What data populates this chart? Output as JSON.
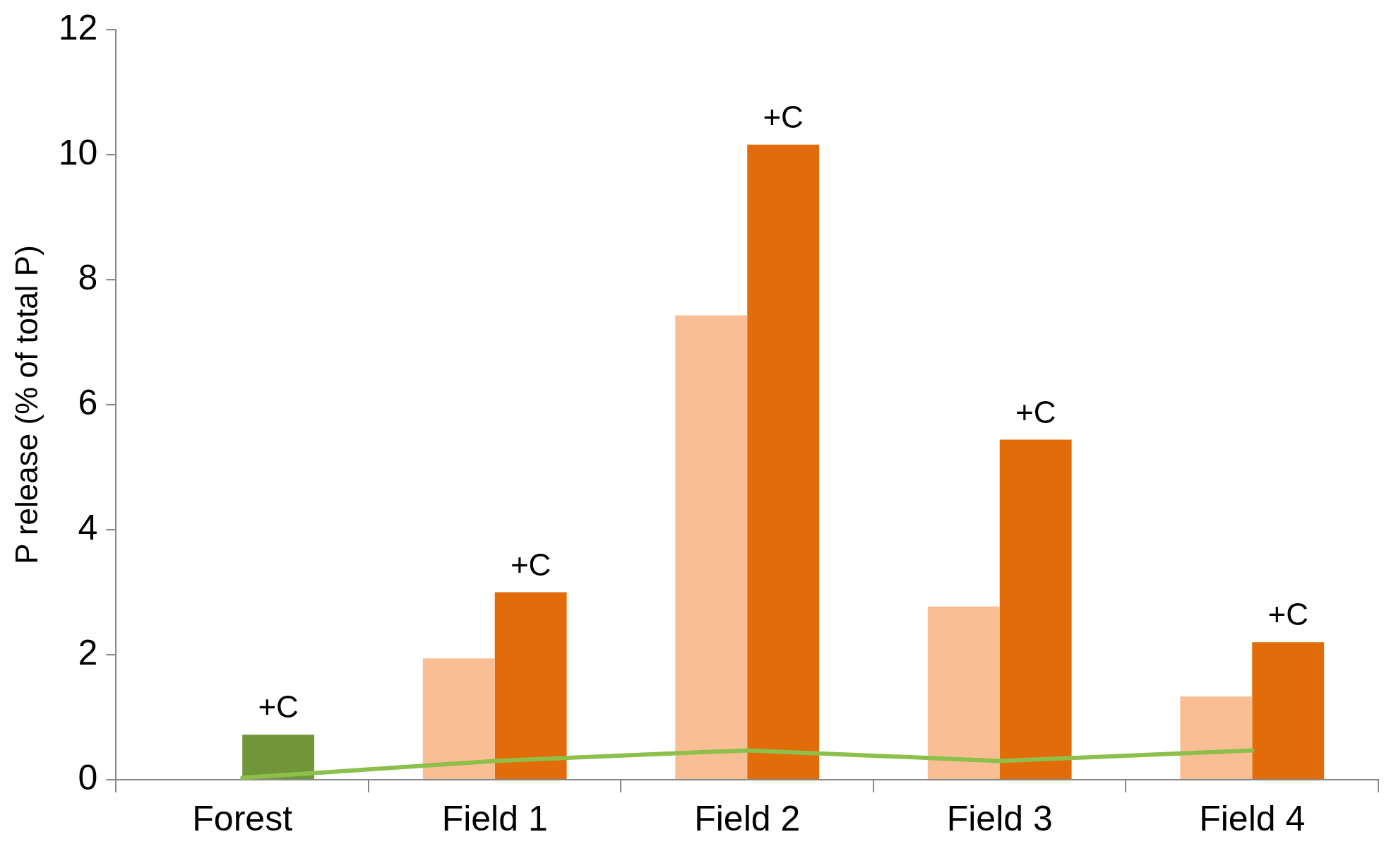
{
  "chart_data": {
    "type": "bar",
    "ylabel": "P release (% of total P)",
    "categories": [
      "Forest",
      "Field 1",
      "Field 2",
      "Field 3",
      "Field 4"
    ],
    "series": [
      {
        "color": "#f9be94",
        "values": [
          null,
          1.94,
          7.43,
          2.77,
          1.33
        ]
      },
      {
        "colors": [
          "#71963a",
          "#e36c0a",
          "#e36c0a",
          "#e36c0a",
          "#e36c0a"
        ],
        "values": [
          0.72,
          3.0,
          10.16,
          5.44,
          2.2
        ]
      },
      {
        "type": "line",
        "color": "#8cc04a",
        "values": [
          0.03,
          0.3,
          0.47,
          0.3,
          0.47
        ]
      }
    ],
    "marker": "none",
    "ylim": [
      0,
      12
    ],
    "yticks": [
      0,
      2,
      4,
      6,
      8,
      10,
      12
    ],
    "annotations": [
      {
        "text": "+C",
        "x": "Forest",
        "y": 0.72
      },
      {
        "text": "+C",
        "x": "Field 1",
        "y": 3.0
      },
      {
        "text": "+C",
        "x": "Field 2",
        "y": 10.16
      },
      {
        "text": "+C",
        "x": "Field 3",
        "y": 5.44
      },
      {
        "text": "+C",
        "x": "Field 4",
        "y": 2.2
      }
    ]
  }
}
